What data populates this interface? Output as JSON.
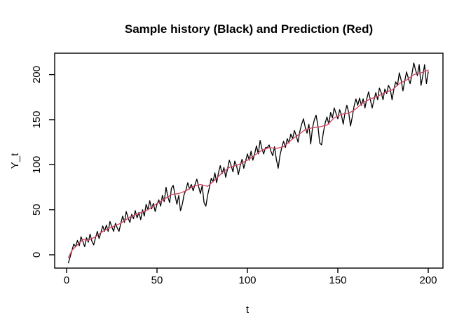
{
  "chart_data": {
    "type": "line",
    "title": "Sample history (Black) and Prediction (Red)",
    "xlabel": "t",
    "ylabel": "Y_t",
    "x_ticks": [
      0,
      50,
      100,
      150,
      200
    ],
    "y_ticks": [
      0,
      50,
      100,
      150,
      200
    ],
    "xlim": [
      -7,
      208
    ],
    "ylim": [
      -15,
      224
    ],
    "grid": false,
    "series": [
      {
        "name": "Sample history",
        "color": "#000000",
        "x_start": 1,
        "x_step": 1,
        "y": [
          -9,
          -2,
          5,
          12,
          9,
          16,
          10,
          20,
          15,
          9,
          19,
          14,
          23,
          15,
          11,
          19,
          26,
          18,
          25,
          32,
          26,
          33,
          26,
          37,
          31,
          26,
          35,
          30,
          26,
          35,
          43,
          36,
          48,
          41,
          36,
          45,
          40,
          49,
          41,
          47,
          39,
          50,
          43,
          56,
          50,
          60,
          51,
          57,
          48,
          56,
          61,
          54,
          66,
          59,
          75,
          64,
          58,
          74,
          77,
          66,
          56,
          66,
          49,
          56,
          67,
          72,
          80,
          73,
          78,
          71,
          78,
          84,
          76,
          68,
          77,
          58,
          54,
          66,
          75,
          85,
          81,
          91,
          80,
          91,
          99,
          90,
          97,
          86,
          95,
          105,
          99,
          92,
          104,
          99,
          89,
          99,
          106,
          96,
          104,
          112,
          105,
          115,
          105,
          112,
          121,
          112,
          127,
          118,
          112,
          119,
          119,
          122,
          115,
          110,
          120,
          106,
          96,
          110,
          119,
          126,
          119,
          129,
          124,
          134,
          129,
          138,
          132,
          125,
          137,
          145,
          151,
          141,
          135,
          145,
          123,
          141,
          150,
          155,
          143,
          124,
          122,
          136,
          146,
          153,
          145,
          158,
          152,
          163,
          157,
          151,
          161,
          155,
          145,
          158,
          166,
          158,
          143,
          153,
          165,
          173,
          166,
          174,
          166,
          173,
          163,
          173,
          181,
          172,
          163,
          172,
          180,
          172,
          185,
          180,
          172,
          184,
          179,
          188,
          184,
          172,
          184,
          192,
          188,
          202,
          194,
          182,
          193,
          203,
          196,
          190,
          201,
          213,
          205,
          199,
          211,
          188,
          199,
          211,
          190,
          203
        ]
      },
      {
        "name": "Prediction",
        "color": "#d84a68",
        "x": [
          1,
          3,
          6,
          9,
          12,
          16,
          20,
          25,
          30,
          35,
          40,
          45,
          50,
          55,
          58,
          62,
          66,
          70,
          74,
          78,
          82,
          86,
          90,
          95,
          100,
          105,
          108,
          112,
          116,
          120,
          124,
          128,
          132,
          136,
          140,
          144,
          148,
          152,
          156,
          160,
          164,
          168,
          172,
          176,
          180,
          184,
          188,
          192,
          196,
          200
        ],
        "y": [
          -3,
          5,
          11,
          17,
          16,
          20,
          26,
          31,
          35,
          42,
          46,
          50,
          57,
          63,
          67,
          68,
          71,
          76,
          78,
          76,
          83,
          91,
          97,
          100,
          105,
          112,
          116,
          119,
          118,
          120,
          127,
          133,
          139,
          141,
          142,
          144,
          152,
          156,
          157,
          162,
          169,
          173,
          176,
          180,
          183,
          190,
          194,
          200,
          202,
          205
        ]
      }
    ]
  }
}
